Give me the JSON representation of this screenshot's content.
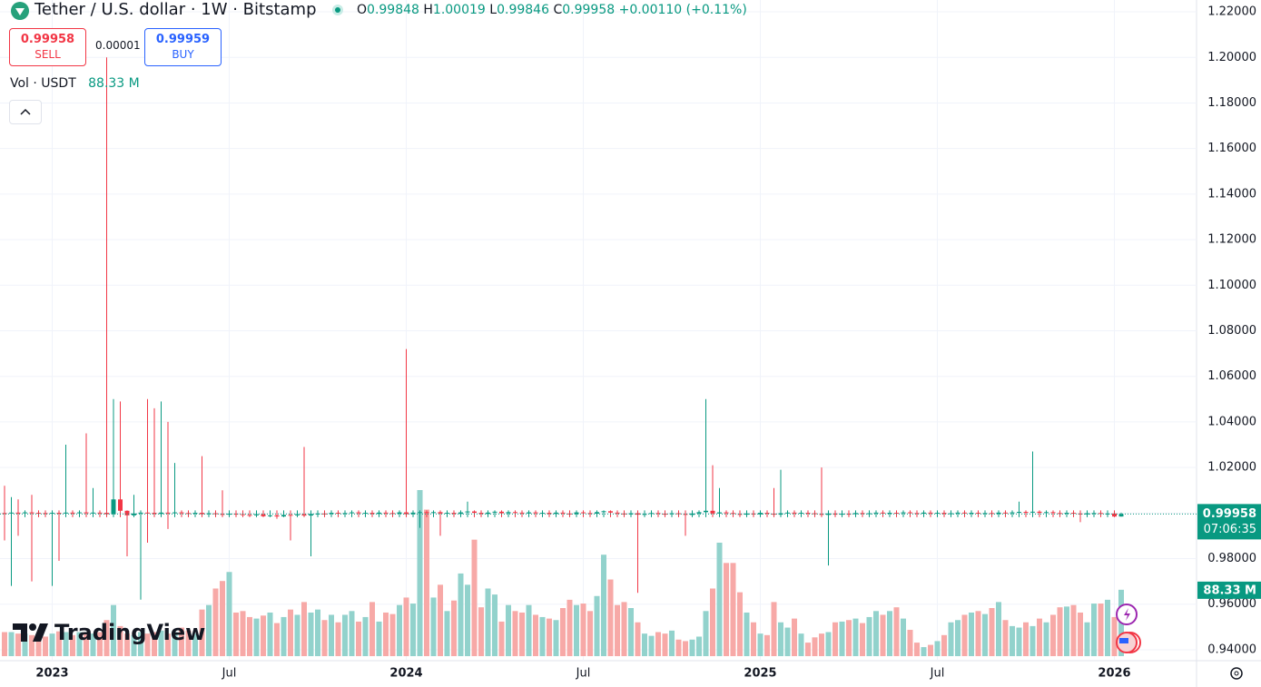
{
  "chart_data": {
    "type": "candlestick",
    "title": "Tether / U.S. dollar · 1W · Bitstamp",
    "ohlc_labels": [
      "O",
      "H",
      "L",
      "C"
    ],
    "change": "+0.00110",
    "change_pct": "(+0.11%)",
    "sell_label": "SELL",
    "buy_label": "BUY",
    "buy_price": 0.99959,
    "spread": 1e-05,
    "countdown": "07:06:35",
    "watermark": "TradingView",
    "up_color": "#089981",
    "down_color": "#f23645",
    "grid": true,
    "ylim": [
      0.9352,
      1.2252
    ],
    "yticks": [
      {
        "value": 0.94,
        "label": "0.94000"
      },
      {
        "value": 0.96,
        "label": "0.96000"
      },
      {
        "value": 0.98,
        "label": "0.98000"
      },
      {
        "value": 1.0,
        "label": "1.00000"
      },
      {
        "value": 1.02,
        "label": "1.02000"
      },
      {
        "value": 1.04,
        "label": "1.04000"
      },
      {
        "value": 1.06,
        "label": "1.06000"
      },
      {
        "value": 1.08,
        "label": "1.08000"
      },
      {
        "value": 1.1,
        "label": "1.10000"
      },
      {
        "value": 1.12,
        "label": "1.12000"
      },
      {
        "value": 1.14,
        "label": "1.14000"
      },
      {
        "value": 1.16,
        "label": "1.16000"
      },
      {
        "value": 1.18,
        "label": "1.18000"
      },
      {
        "value": 1.2,
        "label": "1.20000"
      },
      {
        "value": 1.22,
        "label": "1.22000"
      }
    ],
    "categories": [
      null,
      null,
      null,
      null,
      null,
      null,
      null,
      "2023",
      null,
      null,
      null,
      null,
      null,
      null,
      null,
      null,
      null,
      null,
      null,
      null,
      null,
      null,
      null,
      null,
      null,
      null,
      null,
      null,
      null,
      null,
      null,
      null,
      null,
      "Jul",
      null,
      null,
      null,
      null,
      null,
      null,
      null,
      null,
      null,
      null,
      null,
      null,
      null,
      null,
      null,
      null,
      null,
      null,
      null,
      null,
      null,
      null,
      null,
      null,
      null,
      "2024",
      null,
      null,
      null,
      null,
      null,
      null,
      null,
      null,
      null,
      null,
      null,
      null,
      null,
      null,
      null,
      null,
      null,
      null,
      null,
      null,
      null,
      null,
      null,
      null,
      null,
      "Jul",
      null,
      null,
      null,
      null,
      null,
      null,
      null,
      null,
      null,
      null,
      null,
      null,
      null,
      null,
      null,
      null,
      null,
      null,
      null,
      null,
      null,
      null,
      null,
      null,
      null,
      "2025",
      null,
      null,
      null,
      null,
      null,
      null,
      null,
      null,
      null,
      null,
      null,
      null,
      null,
      null,
      null,
      null,
      null,
      null,
      null,
      null,
      null,
      null,
      null,
      null,
      null,
      "Jul",
      null,
      null,
      null,
      null,
      null,
      null,
      null,
      null,
      null,
      null,
      null,
      null,
      null,
      null,
      null,
      null,
      null,
      null,
      null,
      null,
      null,
      null,
      null,
      null,
      null,
      "2026",
      null
    ],
    "open": [
      1.0,
      0.9998,
      1.0002,
      0.9999,
      1.0003,
      1.0001,
      1.0,
      0.9998,
      1.0001,
      1.0,
      1.0002,
      1.0001,
      1.0003,
      1.0,
      1.0002,
      1.0001,
      0.9995,
      1.006,
      1.001,
      0.999,
      0.9998,
      1.0002,
      1.0001,
      0.9996,
      1.0002,
      0.9999,
      1.0003,
      1.0,
      0.9998,
      1.0001,
      0.9995,
      0.9999,
      0.9996,
      0.9993,
      0.9997,
      0.9995,
      0.9992,
      0.999,
      0.9995,
      0.9986,
      0.999,
      0.9985,
      0.9992,
      0.999,
      0.9995,
      0.9989,
      0.9996,
      0.9998,
      0.9996,
      1.0001,
      0.9999,
      1.0,
      1.0003,
      0.9999,
      1.0001,
      0.9996,
      1.0002,
      1.0,
      0.9997,
      1.0003,
      0.9995,
      1.0002,
      1.0004,
      1.0,
      1.0004,
      0.9998,
      1.0001,
      0.9996,
      1.0003,
      1.0007,
      1.0001,
      0.9996,
      1.0002,
      1.0006,
      0.9999,
      1.0004,
      1.0002,
      0.9998,
      1.0003,
      0.9999,
      1.0001,
      0.9996,
      1.0002,
      0.9998,
      0.9995,
      1.0003,
      1.0,
      0.9997,
      1.0004,
      1.0008,
      1.0002,
      0.9998,
      0.9994,
      0.9999,
      0.9993,
      0.9996,
      1.0,
      0.9997,
      0.9995,
      0.9999,
      0.9996,
      0.9992,
      0.9998,
      1.0004,
      1.001,
      0.9998,
      1.0003,
      1.0,
      0.9996,
      0.9993,
      0.9998,
      0.9994,
      1.0001,
      0.9997,
      0.9993,
      0.9999,
      1.0002,
      0.9998,
      1.0001,
      0.9999,
      0.9996,
      0.9992,
      0.9998,
      0.9993,
      0.9997,
      0.9995,
      1.0,
      0.9996,
      0.9999,
      1.0002,
      0.9998,
      1.0001,
      0.9999,
      1.0003,
      1.0,
      0.9997,
      1.0002,
      0.9998,
      1.0001,
      0.9996,
      0.9999,
      1.0002,
      0.9998,
      1.0001,
      0.9997,
      1.0,
      0.9996,
      1.0002,
      0.9999,
      1.0003,
      1.0005,
      1.0002,
      1.0006,
      1.0001,
      1.0004,
      1.0,
      0.9998,
      1.0001,
      0.9998,
      0.9994,
      0.9999,
      1.0,
      0.9997,
      0.9998,
      0.99848
    ],
    "high": [
      1.012,
      1.007,
      1.006,
      1.0012,
      1.008,
      1.0012,
      1.0012,
      1.0012,
      1.0012,
      1.03,
      1.0012,
      1.0012,
      1.035,
      1.011,
      1.0012,
      1.2,
      1.05,
      1.049,
      1.0012,
      1.008,
      1.0012,
      1.05,
      1.046,
      1.049,
      1.04,
      1.022,
      1.0012,
      1.0012,
      1.0012,
      1.025,
      1.0012,
      1.0012,
      1.01,
      1.0012,
      1.0012,
      1.0012,
      1.0012,
      1.0012,
      1.0012,
      1.0012,
      1.0012,
      1.0012,
      1.0012,
      1.0012,
      1.029,
      1.0012,
      1.0012,
      1.0012,
      1.0012,
      1.0012,
      1.0012,
      1.0012,
      1.0012,
      1.0012,
      1.0012,
      1.0012,
      1.0012,
      1.0012,
      1.0012,
      1.072,
      1.0012,
      1.0012,
      1.0012,
      1.0012,
      1.0012,
      1.0012,
      1.0012,
      1.0012,
      1.005,
      1.0012,
      1.0012,
      1.0012,
      1.0012,
      1.0012,
      1.0012,
      1.0012,
      1.0012,
      1.0012,
      1.0012,
      1.0012,
      1.0012,
      1.0012,
      1.0012,
      1.0012,
      1.0012,
      1.0012,
      1.0012,
      1.0012,
      1.0012,
      1.0012,
      1.0012,
      1.0012,
      1.0012,
      1.0012,
      1.0012,
      1.0012,
      1.0012,
      1.0012,
      1.0012,
      1.0012,
      1.0012,
      1.0012,
      1.0012,
      1.05,
      1.021,
      1.011,
      1.0012,
      1.0012,
      1.0012,
      1.0012,
      1.0012,
      1.0012,
      1.0012,
      1.011,
      1.019,
      1.0012,
      1.0012,
      1.0012,
      1.0012,
      1.0012,
      1.02,
      1.0012,
      1.0012,
      1.0012,
      1.0012,
      1.0012,
      1.0012,
      1.0012,
      1.0012,
      1.0012,
      1.0012,
      1.0012,
      1.0012,
      1.0012,
      1.0012,
      1.0012,
      1.0012,
      1.0012,
      1.0012,
      1.0012,
      1.0012,
      1.0012,
      1.0012,
      1.0012,
      1.0012,
      1.0012,
      1.0012,
      1.0012,
      1.0012,
      1.005,
      1.0012,
      1.027,
      1.0012,
      1.0012,
      1.0012,
      1.0012,
      1.0012,
      1.0012,
      1.0012,
      1.0012,
      1.0012,
      1.0012,
      1.0012,
      1.0012,
      1.00019
    ],
    "low": [
      0.988,
      0.968,
      0.99,
      0.9982,
      0.97,
      0.9982,
      0.9982,
      0.968,
      0.979,
      0.9982,
      0.9982,
      0.9982,
      0.9982,
      0.9982,
      0.9982,
      0.9982,
      0.9982,
      0.9982,
      0.981,
      0.9982,
      0.962,
      0.987,
      0.9982,
      0.9982,
      0.993,
      0.9982,
      0.9982,
      0.9982,
      0.9982,
      0.9982,
      0.9982,
      0.9982,
      0.9982,
      0.9982,
      0.9982,
      0.9982,
      0.9982,
      0.9982,
      0.9982,
      0.9982,
      0.9975,
      0.9982,
      0.988,
      0.9982,
      0.9982,
      0.981,
      0.9982,
      0.9982,
      0.9982,
      0.9982,
      0.9982,
      0.9982,
      0.9982,
      0.9982,
      0.9982,
      0.9982,
      0.9982,
      0.9982,
      0.9982,
      0.9982,
      0.9982,
      0.9935,
      0.9982,
      0.9982,
      0.99,
      0.9982,
      0.9982,
      0.9982,
      0.9982,
      0.9982,
      0.9982,
      0.9982,
      0.9982,
      0.9982,
      0.9982,
      0.9982,
      0.9982,
      0.9982,
      0.9982,
      0.9982,
      0.9982,
      0.9982,
      0.9982,
      0.9982,
      0.9982,
      0.9982,
      0.9982,
      0.9982,
      0.9982,
      0.9982,
      0.9982,
      0.9982,
      0.9982,
      0.965,
      0.9982,
      0.9982,
      0.9982,
      0.9982,
      0.9982,
      0.9982,
      0.99,
      0.9982,
      0.9982,
      0.9982,
      0.9982,
      0.9982,
      0.9982,
      0.9982,
      0.9982,
      0.9982,
      0.9982,
      0.9982,
      0.9982,
      0.9982,
      0.9982,
      0.9982,
      0.9982,
      0.9982,
      0.9982,
      0.9982,
      0.9982,
      0.977,
      0.9982,
      0.9982,
      0.9982,
      0.9982,
      0.9982,
      0.9982,
      0.9982,
      0.9982,
      0.9982,
      0.9982,
      0.9982,
      0.9982,
      0.9982,
      0.9982,
      0.9982,
      0.9982,
      0.9982,
      0.9982,
      0.9982,
      0.9982,
      0.9982,
      0.9982,
      0.9982,
      0.9982,
      0.9982,
      0.9982,
      0.9982,
      0.9982,
      0.9982,
      0.9982,
      0.9982,
      0.9982,
      0.9982,
      0.9982,
      0.9982,
      0.9982,
      0.996,
      0.9982,
      0.9982,
      0.9982,
      0.9982,
      0.9982,
      0.99846
    ],
    "close": [
      0.9998,
      1.0002,
      0.9999,
      1.0003,
      1.0001,
      1.0,
      0.9998,
      1.0001,
      1.0,
      1.0002,
      1.0001,
      1.0003,
      1.0,
      1.0002,
      1.0001,
      0.9995,
      1.006,
      1.001,
      0.999,
      0.9998,
      1.0002,
      1.0001,
      0.9996,
      1.0002,
      0.9999,
      1.0003,
      1.0,
      0.9998,
      1.0001,
      0.9995,
      0.9999,
      0.9996,
      0.9993,
      0.9997,
      0.9995,
      0.9992,
      0.999,
      0.9995,
      0.9986,
      0.999,
      0.9985,
      0.9992,
      0.999,
      0.9995,
      0.9989,
      0.9996,
      0.9998,
      0.9996,
      1.0001,
      0.9999,
      1.0,
      1.0003,
      0.9999,
      1.0001,
      0.9996,
      1.0002,
      1.0,
      0.9997,
      1.0003,
      0.9995,
      1.0002,
      1.0004,
      1.0,
      1.0004,
      0.9998,
      1.0001,
      0.9996,
      1.0003,
      1.0007,
      1.0001,
      0.9996,
      1.0002,
      1.0006,
      0.9999,
      1.0004,
      1.0002,
      0.9998,
      1.0003,
      0.9999,
      1.0001,
      0.9996,
      1.0002,
      0.9998,
      0.9995,
      1.0003,
      1.0,
      0.9997,
      1.0004,
      1.0008,
      1.0002,
      0.9998,
      0.9994,
      0.9999,
      0.9993,
      0.9996,
      1.0,
      0.9997,
      0.9995,
      0.9999,
      0.9996,
      0.9992,
      0.9998,
      1.0004,
      1.001,
      0.9998,
      1.0003,
      1.0,
      0.9996,
      0.9993,
      0.9998,
      0.9994,
      1.0001,
      0.9997,
      0.9993,
      0.9999,
      1.0002,
      0.9998,
      1.0001,
      0.9999,
      0.9996,
      0.9992,
      0.9998,
      0.9993,
      0.9997,
      0.9995,
      1.0,
      0.9996,
      0.9999,
      1.0002,
      0.9998,
      1.0001,
      0.9999,
      1.0003,
      1.0,
      0.9997,
      1.0002,
      0.9998,
      1.0001,
      0.9996,
      0.9999,
      1.0002,
      0.9998,
      1.0001,
      0.9997,
      1.0,
      0.9996,
      1.0002,
      0.9999,
      1.0003,
      1.0005,
      1.0002,
      1.0006,
      1.0001,
      1.0004,
      1.0,
      0.9998,
      1.0001,
      0.9998,
      0.9994,
      0.9999,
      1.0,
      0.9997,
      0.9998,
      0.99848,
      0.99958
    ],
    "volume": {
      "name": "Vol · USDT",
      "up_color": "#92d2cc",
      "down_color": "#f7a9a7",
      "last_label": "88.33 M",
      "values": [
        32,
        32,
        30,
        30,
        28,
        30,
        26,
        30,
        33,
        32,
        28,
        32,
        29,
        30,
        32,
        48,
        68,
        40,
        30,
        28,
        32,
        30,
        32,
        34,
        30,
        32,
        38,
        34,
        30,
        62,
        68,
        90,
        100,
        112,
        58,
        60,
        52,
        50,
        54,
        58,
        44,
        52,
        62,
        55,
        72,
        58,
        62,
        48,
        55,
        45,
        55,
        60,
        46,
        52,
        72,
        46,
        58,
        56,
        68,
        78,
        70,
        221,
        195,
        78,
        95,
        60,
        74,
        110,
        95,
        155,
        65,
        90,
        82,
        46,
        68,
        60,
        58,
        68,
        55,
        52,
        50,
        48,
        64,
        75,
        68,
        70,
        60,
        80,
        135,
        102,
        68,
        72,
        64,
        45,
        30,
        27,
        32,
        30,
        34,
        22,
        20,
        22,
        26,
        60,
        90,
        151,
        124,
        124,
        85,
        58,
        45,
        30,
        28,
        72,
        45,
        38,
        50,
        30,
        18,
        25,
        30,
        32,
        45,
        46,
        48,
        50,
        44,
        52,
        60,
        55,
        60,
        65,
        50,
        35,
        18,
        12,
        15,
        20,
        28,
        45,
        48,
        55,
        58,
        60,
        56,
        64,
        72,
        48,
        40,
        38,
        45,
        40,
        50,
        45,
        55,
        65,
        66,
        68,
        58,
        45,
        70,
        70,
        75,
        52,
        88.33
      ]
    }
  }
}
